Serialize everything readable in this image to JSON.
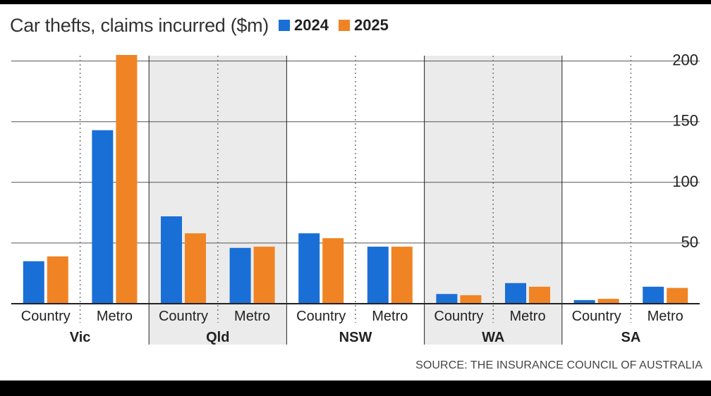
{
  "chart_data": {
    "type": "bar",
    "title": "Car thefts, claims incurred ($m)",
    "source": "SOURCE: THE INSURANCE COUNCIL OF AUSTRALIA",
    "ylim": [
      0,
      205
    ],
    "yticks": [
      "200",
      "150",
      "100",
      "50"
    ],
    "ytick_values": [
      200,
      150,
      100,
      50
    ],
    "legend_placement": "top, next to title",
    "series": [
      {
        "name": "2024",
        "color": "#1a6fd6"
      },
      {
        "name": "2025",
        "color": "#f08424"
      }
    ],
    "groups": [
      {
        "state": "Vic",
        "shaded": false,
        "categories": [
          {
            "label": "Country",
            "values": [
              35,
              39
            ]
          },
          {
            "label": "Metro",
            "values": [
              143,
              205
            ]
          }
        ]
      },
      {
        "state": "Qld",
        "shaded": true,
        "categories": [
          {
            "label": "Country",
            "values": [
              72,
              58
            ]
          },
          {
            "label": "Metro",
            "values": [
              46,
              47
            ]
          }
        ]
      },
      {
        "state": "NSW",
        "shaded": false,
        "categories": [
          {
            "label": "Country",
            "values": [
              58,
              54
            ]
          },
          {
            "label": "Metro",
            "values": [
              47,
              47
            ]
          }
        ]
      },
      {
        "state": "WA",
        "shaded": true,
        "categories": [
          {
            "label": "Country",
            "values": [
              8,
              7
            ]
          },
          {
            "label": "Metro",
            "values": [
              17,
              14
            ]
          }
        ]
      },
      {
        "state": "SA",
        "shaded": false,
        "categories": [
          {
            "label": "Country",
            "values": [
              3,
              4
            ]
          },
          {
            "label": "Metro",
            "values": [
              14,
              13
            ]
          }
        ]
      }
    ]
  }
}
